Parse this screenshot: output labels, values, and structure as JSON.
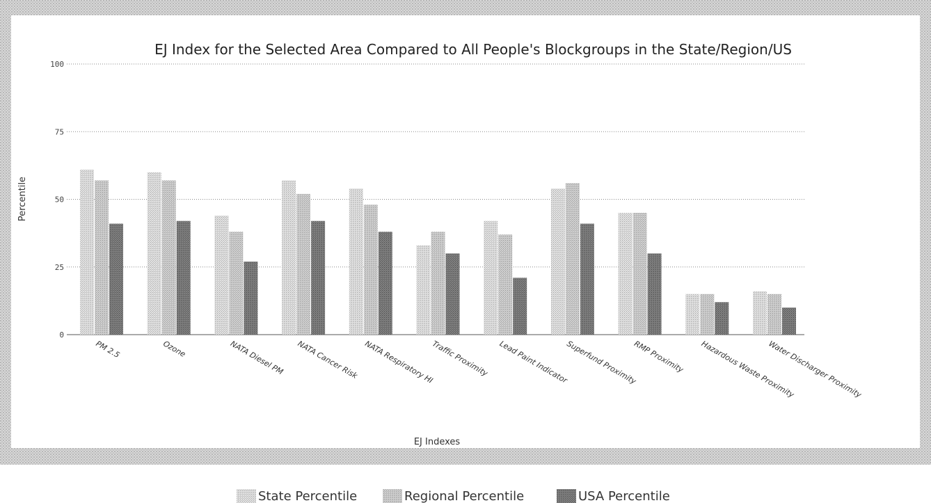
{
  "colors": {
    "band": "#c9c9c9",
    "state": "#cfcfcf",
    "regional": "#bcbcbc",
    "usa": "#7a7a7a",
    "grid": "#8a8a8a"
  },
  "chart_data": {
    "type": "bar",
    "title": "EJ Index for the Selected Area Compared to All People's Blockgroups in the State/Region/US",
    "xlabel": "EJ Indexes",
    "ylabel": "Percentile",
    "ylim": [
      0,
      100
    ],
    "yticks": [
      0,
      25,
      50,
      75,
      100
    ],
    "grid": true,
    "legend_position": "bottom",
    "categories": [
      "PM 2.5",
      "Ozone",
      "NATA Diesel PM",
      "NATA Cancer Risk",
      "NATA Respiratory HI",
      "Traffic Proximity",
      "Lead Paint Indicator",
      "Superfund Proximity",
      "RMP Proximity",
      "Hazardous Waste Proximity",
      "Water Discharger Proximity"
    ],
    "series": [
      {
        "name": "State Percentile",
        "values": [
          61,
          60,
          44,
          57,
          54,
          33,
          42,
          54,
          45,
          15,
          16
        ]
      },
      {
        "name": "Regional Percentile",
        "values": [
          57,
          57,
          38,
          52,
          48,
          38,
          37,
          56,
          45,
          15,
          15
        ]
      },
      {
        "name": "USA Percentile",
        "values": [
          41,
          42,
          27,
          42,
          38,
          30,
          21,
          41,
          30,
          12,
          10
        ]
      }
    ]
  }
}
